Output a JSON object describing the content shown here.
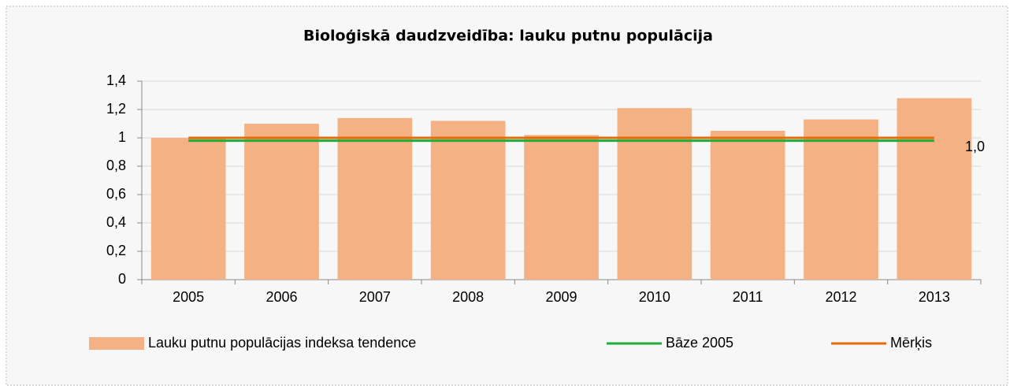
{
  "chart_data": {
    "type": "bar",
    "title": "Bioloģiskā daudzveidība: lauku putnu populācija",
    "categories": [
      "2005",
      "2006",
      "2007",
      "2008",
      "2009",
      "2010",
      "2011",
      "2012",
      "2013"
    ],
    "series": [
      {
        "name": "Lauku putnu populācijas indeksa tendence",
        "type": "bar",
        "color": "#f4b183",
        "values": [
          1.0,
          1.1,
          1.14,
          1.12,
          1.02,
          1.21,
          1.05,
          1.13,
          1.28
        ]
      },
      {
        "name": "Bāze 2005",
        "type": "line",
        "color": "#1fae3a",
        "values": [
          0.98,
          0.98,
          0.98,
          0.98,
          0.98,
          0.98,
          0.98,
          0.98,
          0.98
        ]
      },
      {
        "name": "Mērķis",
        "type": "line",
        "color": "#e36c0a",
        "values": [
          1,
          1,
          1,
          1,
          1,
          1,
          1,
          1,
          1
        ]
      }
    ],
    "annotations": [
      "1,0"
    ],
    "ylim": [
      0,
      1.4
    ],
    "yticks": [
      0,
      {
        "value": 0.2,
        "label": "0,2"
      },
      {
        "value": 0.4,
        "label": "0,4"
      },
      {
        "value": 0.6,
        "label": "0,6"
      },
      {
        "value": 0.8,
        "label": "0,8"
      },
      1,
      {
        "value": 1.2,
        "label": "1,2"
      },
      {
        "value": 1.4,
        "label": "1,4"
      }
    ],
    "grid": true,
    "legend": "bottom"
  }
}
